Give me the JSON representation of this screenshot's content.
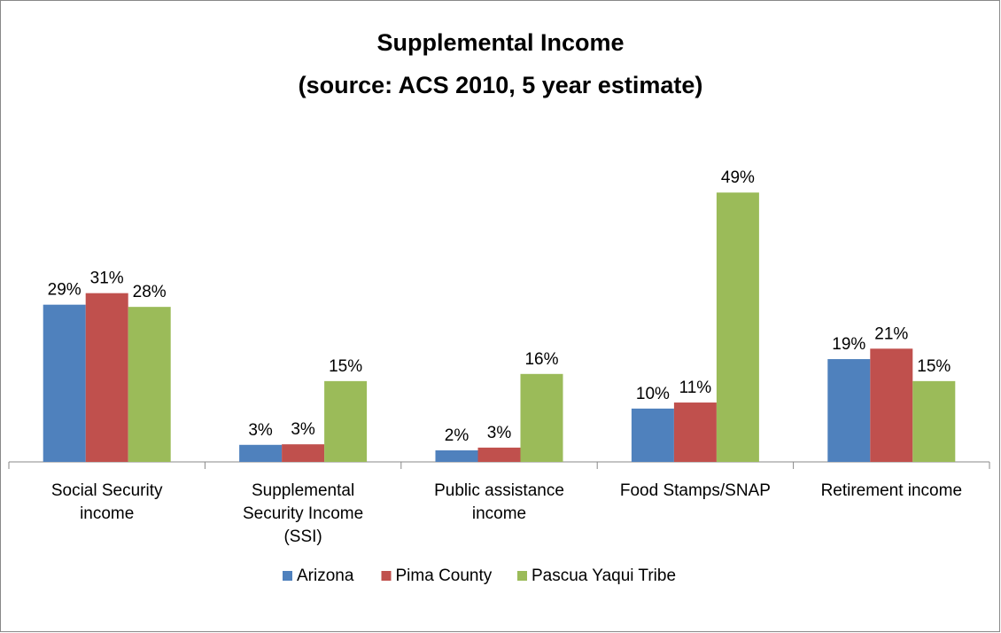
{
  "chart_data": {
    "type": "bar",
    "title": "Supplemental Income",
    "subtitle": "(source: ACS 2010, 5 year estimate)",
    "categories": [
      "Social Security income",
      "Supplemental Security Income (SSI)",
      "Public assistance income",
      "Food Stamps/SNAP",
      "Retirement income"
    ],
    "series": [
      {
        "name": "Arizona",
        "color": "#4f81bd",
        "values": [
          28.6,
          3.1,
          2.1,
          9.7,
          18.7
        ],
        "value_labels": [
          "29%",
          "3%",
          "2%",
          "10%",
          "19%"
        ]
      },
      {
        "name": "Pima County",
        "color": "#c0504d",
        "values": [
          30.7,
          3.2,
          2.6,
          10.8,
          20.6
        ],
        "value_labels": [
          "31%",
          "3%",
          "3%",
          "11%",
          "21%"
        ]
      },
      {
        "name": "Pascua Yaqui Tribe",
        "color": "#9bbb59",
        "values": [
          28.2,
          14.7,
          16.0,
          49.0,
          14.7
        ],
        "value_labels": [
          "28%",
          "15%",
          "16%",
          "49%",
          "15%"
        ]
      }
    ],
    "legend": "bottom"
  }
}
